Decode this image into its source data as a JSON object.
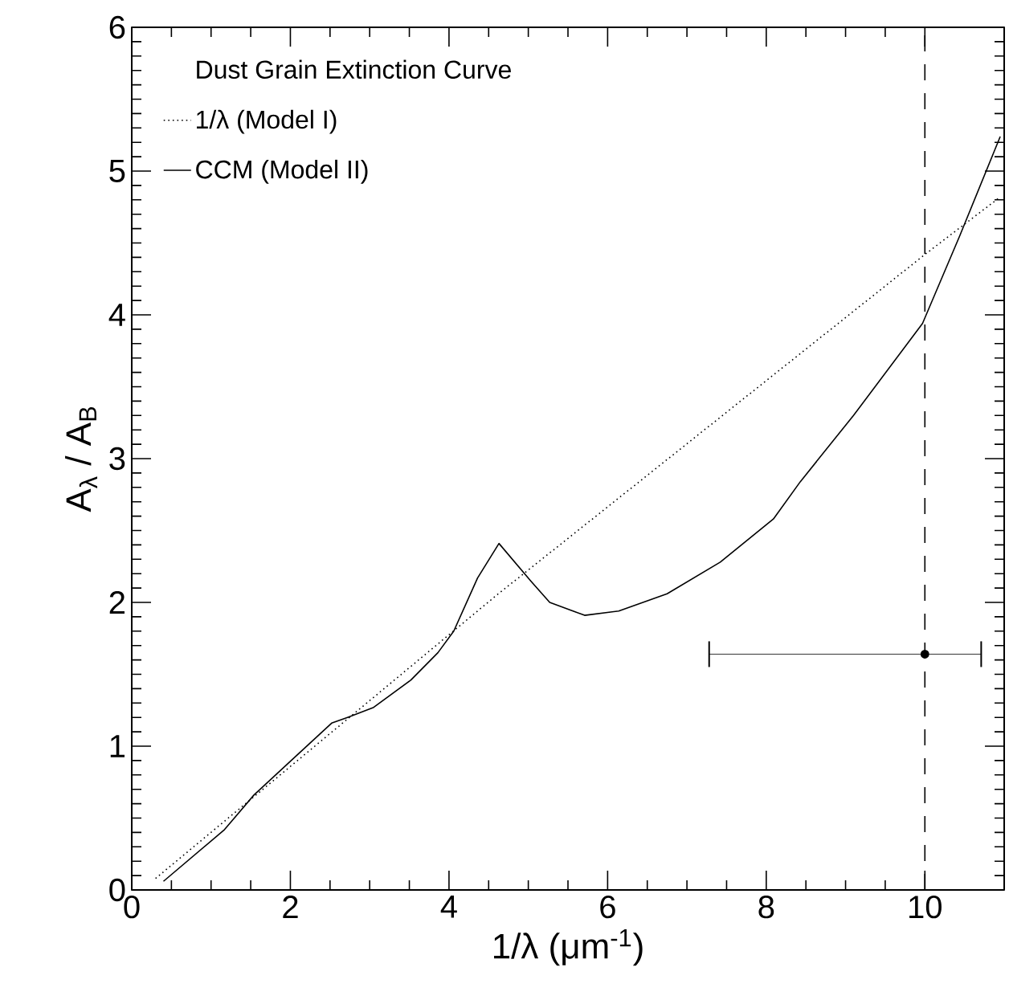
{
  "chart_data": {
    "type": "line",
    "legend_title": "Dust Grain Extinction Curve",
    "xlabel": "1/λ (μm$^{-1}$)",
    "ylabel": "A$_{λ}$ / A$_{B}$",
    "xlim": [
      0,
      11
    ],
    "ylim": [
      0,
      6
    ],
    "xticks": [
      0,
      2,
      4,
      6,
      8,
      10
    ],
    "yticks": [
      0,
      1,
      2,
      3,
      4,
      5,
      6
    ],
    "legend": "top left",
    "series": [
      {
        "name": "1/λ (Model I)",
        "color": "#000000",
        "line_style": "dotted",
        "x": [
          0.3,
          4.6,
          10,
          10.95
        ],
        "values": [
          0.08,
          2.05,
          4.42,
          4.82
        ]
      },
      {
        "name": "CCM (Model II)",
        "color": "#000000",
        "line_style": "solid",
        "x": [
          0.4,
          1.17,
          1.54,
          2.01,
          2.52,
          2.72,
          3.05,
          3.52,
          3.86,
          4.06,
          4.36,
          4.63,
          5.03,
          5.27,
          5.71,
          6.14,
          6.75,
          7.42,
          8.09,
          8.43,
          9.1,
          9.97,
          10.44,
          10.95
        ],
        "values": [
          0.06,
          0.42,
          0.66,
          0.9,
          1.16,
          1.2,
          1.27,
          1.46,
          1.65,
          1.8,
          2.17,
          2.41,
          2.15,
          2.0,
          1.91,
          1.94,
          2.06,
          2.28,
          2.58,
          2.84,
          3.3,
          3.94,
          4.55,
          5.24
        ]
      },
      {
        "type": "scatter",
        "color": "#000000",
        "marker": "circle",
        "x": [
          10
        ],
        "values": [
          1.64
        ],
        "xerrors": [
          [
            7.28,
            10.71
          ]
        ]
      }
    ],
    "ref_lines": [
      {
        "axis": "x",
        "value": 10,
        "line_style": "dashed",
        "color": "#000000"
      }
    ]
  }
}
